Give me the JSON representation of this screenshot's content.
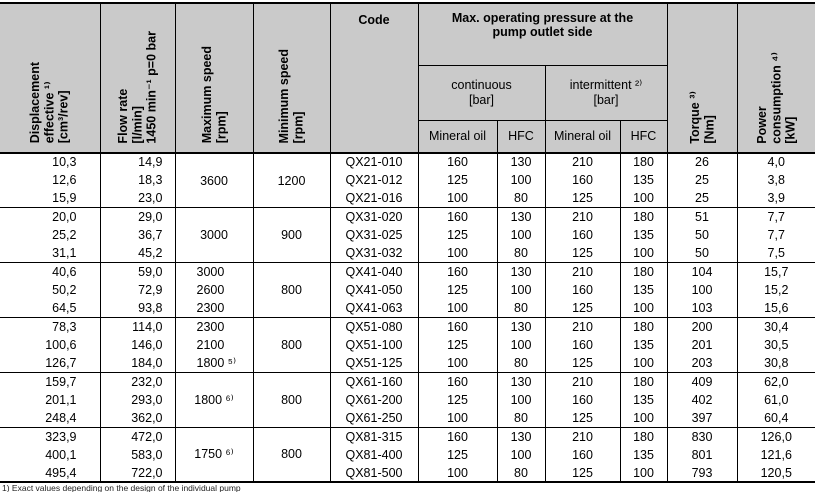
{
  "table": {
    "headers": {
      "displacement": "Displacement\neffective ¹⁾\n[cm³/rev]",
      "flow_rate": "Flow rate\n[l/min]\n1450 min⁻¹ p=0 bar",
      "max_speed": "Maximum speed\n[rpm]",
      "min_speed": "Minimum speed\n[rpm]",
      "code": "Code",
      "pressure_group": "Max. operating pressure at the\npump outlet side",
      "continuous": "continuous\n[bar]",
      "intermittent": "intermittent ²⁾\n[bar]",
      "mineral_oil": "Mineral oil",
      "hfc": "HFC",
      "torque": "Torque ³⁾\n[Nm]",
      "power": "Power\nconsumption ⁴⁾\n[kW]"
    },
    "groups": [
      {
        "max_speed": "3600",
        "min_speed": "1200",
        "rows": [
          {
            "disp": "10,3",
            "flow": "14,9",
            "code": "QX21-010",
            "cont_mineral": "160",
            "cont_hfc": "130",
            "int_mineral": "210",
            "int_hfc": "180",
            "torque": "26",
            "power": "4,0"
          },
          {
            "disp": "12,6",
            "flow": "18,3",
            "code": "QX21-012",
            "cont_mineral": "125",
            "cont_hfc": "100",
            "int_mineral": "160",
            "int_hfc": "135",
            "torque": "25",
            "power": "3,8"
          },
          {
            "disp": "15,9",
            "flow": "23,0",
            "code": "QX21-016",
            "cont_mineral": "100",
            "cont_hfc": "80",
            "int_mineral": "125",
            "int_hfc": "100",
            "torque": "25",
            "power": "3,9"
          }
        ]
      },
      {
        "max_speed": "3000",
        "min_speed": "900",
        "rows": [
          {
            "disp": "20,0",
            "flow": "29,0",
            "code": "QX31-020",
            "cont_mineral": "160",
            "cont_hfc": "130",
            "int_mineral": "210",
            "int_hfc": "180",
            "torque": "51",
            "power": "7,7"
          },
          {
            "disp": "25,2",
            "flow": "36,7",
            "code": "QX31-025",
            "cont_mineral": "125",
            "cont_hfc": "100",
            "int_mineral": "160",
            "int_hfc": "135",
            "torque": "50",
            "power": "7,7"
          },
          {
            "disp": "31,1",
            "flow": "45,2",
            "code": "QX31-032",
            "cont_mineral": "100",
            "cont_hfc": "80",
            "int_mineral": "125",
            "int_hfc": "100",
            "torque": "50",
            "power": "7,5"
          }
        ]
      },
      {
        "min_speed": "800",
        "rows": [
          {
            "disp": "40,6",
            "flow": "59,0",
            "max_speed": "3000",
            "code": "QX41-040",
            "cont_mineral": "160",
            "cont_hfc": "130",
            "int_mineral": "210",
            "int_hfc": "180",
            "torque": "104",
            "power": "15,7"
          },
          {
            "disp": "50,2",
            "flow": "72,9",
            "max_speed": "2600",
            "code": "QX41-050",
            "cont_mineral": "125",
            "cont_hfc": "100",
            "int_mineral": "160",
            "int_hfc": "135",
            "torque": "100",
            "power": "15,2"
          },
          {
            "disp": "64,5",
            "flow": "93,8",
            "max_speed": "2300",
            "code": "QX41-063",
            "cont_mineral": "100",
            "cont_hfc": "80",
            "int_mineral": "125",
            "int_hfc": "100",
            "torque": "103",
            "power": "15,6"
          }
        ]
      },
      {
        "min_speed": "800",
        "rows": [
          {
            "disp": "78,3",
            "flow": "114,0",
            "max_speed": "2300",
            "code": "QX51-080",
            "cont_mineral": "160",
            "cont_hfc": "130",
            "int_mineral": "210",
            "int_hfc": "180",
            "torque": "200",
            "power": "30,4"
          },
          {
            "disp": "100,6",
            "flow": "146,0",
            "max_speed": "2100",
            "code": "QX51-100",
            "cont_mineral": "125",
            "cont_hfc": "100",
            "int_mineral": "160",
            "int_hfc": "135",
            "torque": "201",
            "power": "30,5"
          },
          {
            "disp": "126,7",
            "flow": "184,0",
            "max_speed": "1800 ⁵⁾",
            "code": "QX51-125",
            "cont_mineral": "100",
            "cont_hfc": "80",
            "int_mineral": "125",
            "int_hfc": "100",
            "torque": "203",
            "power": "30,8"
          }
        ]
      },
      {
        "max_speed": "1800 ⁶⁾",
        "min_speed": "800",
        "rows": [
          {
            "disp": "159,7",
            "flow": "232,0",
            "code": "QX61-160",
            "cont_mineral": "160",
            "cont_hfc": "130",
            "int_mineral": "210",
            "int_hfc": "180",
            "torque": "409",
            "power": "62,0"
          },
          {
            "disp": "201,1",
            "flow": "293,0",
            "code": "QX61-200",
            "cont_mineral": "125",
            "cont_hfc": "100",
            "int_mineral": "160",
            "int_hfc": "135",
            "torque": "402",
            "power": "61,0"
          },
          {
            "disp": "248,4",
            "flow": "362,0",
            "code": "QX61-250",
            "cont_mineral": "100",
            "cont_hfc": "80",
            "int_mineral": "125",
            "int_hfc": "100",
            "torque": "397",
            "power": "60,4"
          }
        ]
      },
      {
        "max_speed": "1750 ⁶⁾",
        "min_speed": "800",
        "rows": [
          {
            "disp": "323,9",
            "flow": "472,0",
            "code": "QX81-315",
            "cont_mineral": "160",
            "cont_hfc": "130",
            "int_mineral": "210",
            "int_hfc": "180",
            "torque": "830",
            "power": "126,0"
          },
          {
            "disp": "400,1",
            "flow": "583,0",
            "code": "QX81-400",
            "cont_mineral": "125",
            "cont_hfc": "100",
            "int_mineral": "160",
            "int_hfc": "135",
            "torque": "801",
            "power": "121,6"
          },
          {
            "disp": "495,4",
            "flow": "722,0",
            "code": "QX81-500",
            "cont_mineral": "100",
            "cont_hfc": "80",
            "int_mineral": "125",
            "int_hfc": "100",
            "torque": "793",
            "power": "120,5"
          }
        ]
      }
    ],
    "footnote_clipped": "1) Exact values depending on the design of the individual pump",
    "colors": {
      "header_bg": "#cacaca",
      "border": "#000000",
      "row_bg": "#ffffff"
    }
  }
}
